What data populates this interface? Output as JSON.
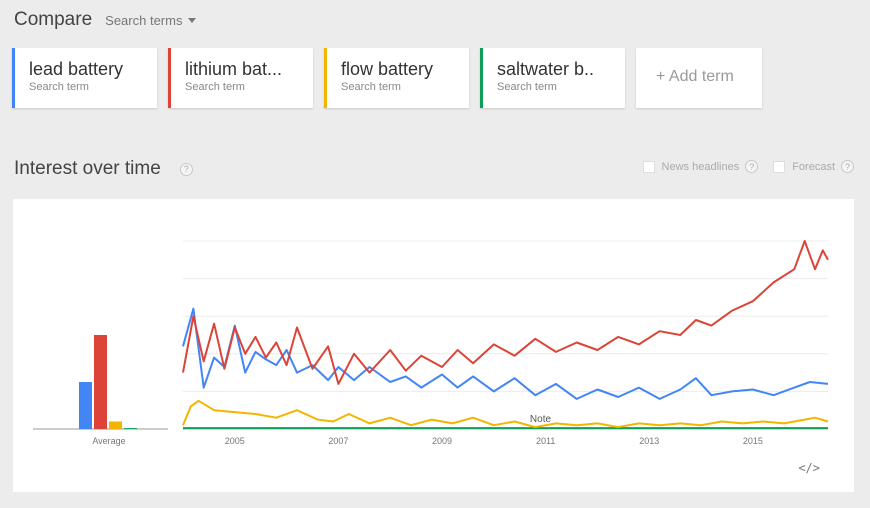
{
  "header": {
    "title": "Compare",
    "dropdown_label": "Search terms"
  },
  "terms": [
    {
      "label": "lead battery",
      "sub": "Search term",
      "color": "#4285f4"
    },
    {
      "label": "lithium bat...",
      "sub": "Search term",
      "color": "#db4437"
    },
    {
      "label": "flow battery",
      "sub": "Search term",
      "color": "#f4b400"
    },
    {
      "label": "saltwater b..",
      "sub": "Search term",
      "color": "#0f9d58"
    }
  ],
  "add_term_label": "+ Add term",
  "section": {
    "title": "Interest over time",
    "help": "?"
  },
  "options": {
    "news": "News headlines",
    "forecast": "Forecast"
  },
  "embed_label": "</>",
  "chart_data": {
    "type": "line",
    "x_range": [
      2004.0,
      2016.45
    ],
    "ylim": [
      0,
      100
    ],
    "x_ticks": [
      "2005",
      "2007",
      "2009",
      "2011",
      "2013",
      "2015"
    ],
    "average_label": "Average",
    "averages": [
      {
        "name": "lead battery",
        "value": 25
      },
      {
        "name": "lithium bat...",
        "value": 50
      },
      {
        "name": "flow battery",
        "value": 4
      },
      {
        "name": "saltwater b..",
        "value": 0.5
      }
    ],
    "annotations": [
      {
        "x": 2010.9,
        "text": "Note"
      }
    ],
    "series": [
      {
        "name": "lead battery",
        "color": "#4285f4",
        "x": [
          2004.0,
          2004.2,
          2004.4,
          2004.6,
          2004.8,
          2005.0,
          2005.2,
          2005.4,
          2005.6,
          2005.8,
          2006.0,
          2006.2,
          2006.5,
          2006.8,
          2007.0,
          2007.3,
          2007.6,
          2008.0,
          2008.3,
          2008.6,
          2009.0,
          2009.3,
          2009.6,
          2010.0,
          2010.4,
          2010.8,
          2011.2,
          2011.6,
          2012.0,
          2012.4,
          2012.8,
          2013.2,
          2013.6,
          2013.9,
          2014.2,
          2014.6,
          2015.0,
          2015.4,
          2015.8,
          2016.1,
          2016.45
        ],
        "y": [
          44,
          64,
          22,
          38,
          33,
          55,
          30,
          41,
          37,
          34,
          42,
          30,
          34,
          26,
          33,
          26,
          33,
          25,
          28,
          22,
          29,
          22,
          28,
          20,
          27,
          18,
          24,
          16,
          21,
          17,
          22,
          16,
          21,
          27,
          18,
          20,
          21,
          18,
          22,
          25,
          24
        ]
      },
      {
        "name": "lithium bat...",
        "color": "#db4437",
        "x": [
          2004.0,
          2004.2,
          2004.4,
          2004.6,
          2004.8,
          2005.0,
          2005.2,
          2005.4,
          2005.6,
          2005.8,
          2006.0,
          2006.2,
          2006.5,
          2006.8,
          2007.0,
          2007.3,
          2007.6,
          2008.0,
          2008.3,
          2008.6,
          2009.0,
          2009.3,
          2009.6,
          2010.0,
          2010.4,
          2010.8,
          2011.2,
          2011.6,
          2012.0,
          2012.4,
          2012.8,
          2013.2,
          2013.6,
          2013.9,
          2014.2,
          2014.6,
          2015.0,
          2015.4,
          2015.8,
          2016.0,
          2016.2,
          2016.35,
          2016.45
        ],
        "y": [
          30,
          60,
          36,
          56,
          32,
          54,
          40,
          49,
          38,
          46,
          34,
          54,
          32,
          44,
          24,
          40,
          30,
          42,
          31,
          39,
          33,
          42,
          35,
          45,
          39,
          48,
          41,
          46,
          42,
          49,
          45,
          52,
          50,
          58,
          55,
          63,
          68,
          78,
          85,
          100,
          85,
          95,
          90
        ]
      },
      {
        "name": "flow battery",
        "color": "#f4b400",
        "x": [
          2004.0,
          2004.15,
          2004.3,
          2004.6,
          2005.0,
          2005.4,
          2005.8,
          2006.2,
          2006.6,
          2006.9,
          2007.2,
          2007.6,
          2008.0,
          2008.4,
          2008.8,
          2009.2,
          2009.6,
          2010.0,
          2010.4,
          2010.8,
          2011.2,
          2011.6,
          2012.0,
          2012.4,
          2012.8,
          2013.2,
          2013.6,
          2014.0,
          2014.4,
          2014.8,
          2015.2,
          2015.6,
          2016.0,
          2016.2,
          2016.45
        ],
        "y": [
          2,
          12,
          15,
          10,
          9,
          8,
          6,
          10,
          5,
          4,
          8,
          3,
          6,
          2,
          5,
          3,
          6,
          2,
          4,
          1,
          3,
          2,
          3,
          1,
          3,
          2,
          3,
          2,
          4,
          3,
          4,
          3,
          5,
          6,
          4
        ]
      },
      {
        "name": "saltwater b..",
        "color": "#0f9d58",
        "x": [
          2004.0,
          2016.45
        ],
        "y": [
          0.5,
          0.5
        ]
      }
    ]
  }
}
